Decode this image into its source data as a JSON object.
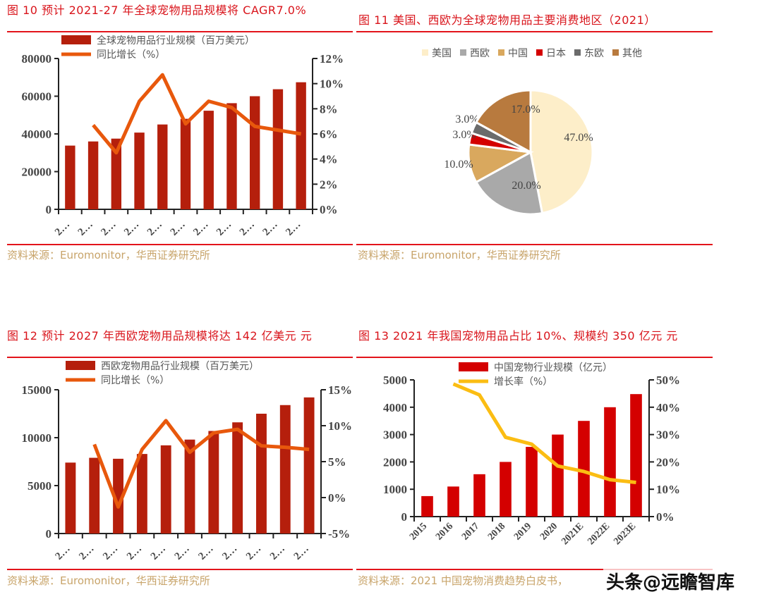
{
  "panels": {
    "p1": {
      "title": "图 10 预计 2021-27 年全球宠物用品规模将",
      "title_cont": "CAGR7.0%",
      "source": "资料来源：Euromonitor，华西证券研究所"
    },
    "p2": {
      "title": "图 11 美国、西欧为全球宠物用品主要消费地区（2021）",
      "source": "资料来源：Euromonitor，华西证券研究所"
    },
    "p3": {
      "title": "图 12 预计 2027 年西欧宠物用品规模将达 142 亿美元",
      "title_cont": "元",
      "source": "资料来源：Euromonitor，华西证券研究所"
    },
    "p4": {
      "title": "图 13 2021 年我国宠物用品占比 10%、规模约 350 亿元",
      "title_cont": "元",
      "source": "资料来源：2021 中国宠物消费趋势白皮书，"
    }
  },
  "watermark": "头条@远瞻智库",
  "chart_data": [
    {
      "type": "bar+line",
      "categories": [
        "2…",
        "2…",
        "2…",
        "2…",
        "2…",
        "2…",
        "2…",
        "2…",
        "2…",
        "2…",
        "2…"
      ],
      "series": [
        {
          "name": "全球宠物用品行业规模（百万美元）",
          "type": "bar",
          "axis": "left",
          "color": "#b51f0c",
          "values": [
            33800,
            36000,
            37500,
            40700,
            45000,
            48000,
            52300,
            56300,
            60000,
            63700,
            67400
          ]
        },
        {
          "name": "同比增长（%）",
          "type": "line",
          "axis": "right",
          "color": "#e8580c",
          "values": [
            null,
            6.7,
            4.5,
            8.6,
            10.7,
            6.8,
            8.6,
            8.1,
            6.6,
            6.3,
            6.0
          ]
        }
      ],
      "ylim": [
        0,
        80000
      ],
      "yticks": [
        0,
        20000,
        40000,
        60000,
        80000
      ],
      "y2lim": [
        0,
        12
      ],
      "y2ticks": [
        "0%",
        "2%",
        "4%",
        "6%",
        "8%",
        "10%",
        "12%"
      ],
      "legend": "top"
    },
    {
      "type": "pie",
      "categories": [
        "美国",
        "西欧",
        "中国",
        "日本",
        "东欧",
        "其他"
      ],
      "values": [
        47.0,
        20.0,
        10.0,
        3.0,
        3.0,
        17.0
      ],
      "labels": [
        "47.0%",
        "20.0%",
        "10.0%",
        "3.0%",
        "3.0%",
        "17.0%"
      ],
      "colors": [
        "#fdeec9",
        "#a9a9a9",
        "#d9a85e",
        "#d40000",
        "#6b6b6b",
        "#b87a3e"
      ],
      "legend": "top"
    },
    {
      "type": "bar+line",
      "categories": [
        "2…",
        "2…",
        "2…",
        "2…",
        "2…",
        "2…",
        "2…",
        "2…",
        "2…",
        "2…",
        "2…"
      ],
      "series": [
        {
          "name": "西欧宠物用品行业规模（百万美元）",
          "type": "bar",
          "axis": "left",
          "color": "#b51f0c",
          "values": [
            7400,
            7900,
            7800,
            8300,
            9200,
            9800,
            10700,
            11600,
            12500,
            13400,
            14200
          ]
        },
        {
          "name": "同比增长（%）",
          "type": "line",
          "axis": "right",
          "color": "#e8580c",
          "values": [
            null,
            7.4,
            -1.3,
            6.7,
            10.7,
            6.3,
            9.0,
            9.5,
            7.2,
            7.0,
            6.7
          ]
        }
      ],
      "ylim": [
        0,
        15000
      ],
      "yticks": [
        0,
        5000,
        10000,
        15000
      ],
      "y2lim": [
        -5,
        15
      ],
      "y2ticks": [
        "-5%",
        "0%",
        "5%",
        "10%",
        "15%"
      ],
      "legend": "top"
    },
    {
      "type": "bar+line",
      "categories": [
        "2015",
        "2016",
        "2017",
        "2018",
        "2019",
        "2020",
        "2021E",
        "2022E",
        "2023E"
      ],
      "series": [
        {
          "name": "中国宠物行业规模（亿元）",
          "type": "bar",
          "axis": "left",
          "color": "#d40000",
          "values": [
            750,
            1100,
            1550,
            2000,
            2550,
            3000,
            3500,
            4000,
            4480
          ]
        },
        {
          "name": "增长率（%）",
          "type": "line",
          "axis": "right",
          "color": "#fbbd13",
          "values": [
            null,
            48.5,
            44.5,
            29.0,
            26.5,
            18.5,
            16.5,
            13.5,
            12.5
          ]
        }
      ],
      "ylim": [
        0,
        5000
      ],
      "yticks": [
        0,
        1000,
        2000,
        3000,
        4000,
        5000
      ],
      "y2lim": [
        0,
        50
      ],
      "y2ticks": [
        "0%",
        "10%",
        "20%",
        "30%",
        "40%",
        "50%"
      ],
      "legend": "top"
    }
  ]
}
